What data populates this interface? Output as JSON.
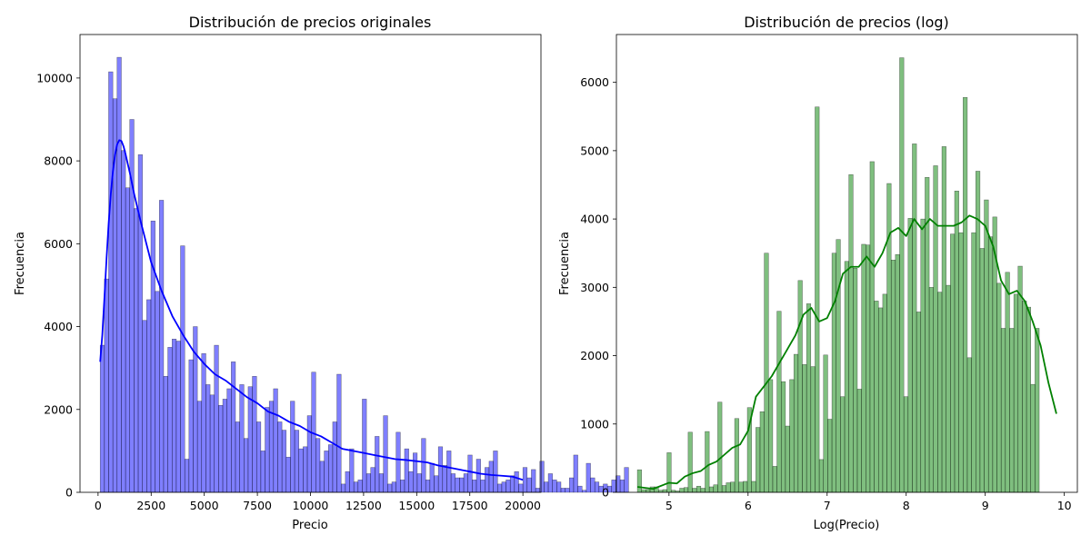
{
  "chart_data": [
    {
      "type": "bar",
      "title": "Distribución de precios originales",
      "xlabel": "Precio",
      "ylabel": "Frecuencia",
      "xlim": [
        -850,
        20850
      ],
      "ylim": [
        0,
        11050
      ],
      "xticks": [
        0,
        2500,
        5000,
        7500,
        10000,
        12500,
        15000,
        17500,
        20000
      ],
      "xtick_labels": [
        "0",
        "2500",
        "5000",
        "7500",
        "10000",
        "12500",
        "15000",
        "17500",
        "20000"
      ],
      "yticks": [
        0,
        2000,
        4000,
        6000,
        8000,
        10000
      ],
      "ytick_labels": [
        "0",
        "2000",
        "4000",
        "6000",
        "8000",
        "10000"
      ],
      "grid": false,
      "bar_color": "#0000ff",
      "bar_alpha": 0.5,
      "kde_color": "#0000ff",
      "bins": {
        "start": 100,
        "width": 199,
        "values": [
          3550,
          5150,
          10150,
          9500,
          10500,
          8250,
          7350,
          9000,
          6850,
          8150,
          4150,
          4650,
          6550,
          4850,
          7050,
          2800,
          3500,
          3700,
          3650,
          5950,
          800,
          3200,
          4000,
          2200,
          3350,
          2600,
          2350,
          3550,
          2100,
          2250,
          2500,
          3150,
          1700,
          2600,
          1300,
          2550,
          2800,
          1700,
          1000,
          2050,
          2200,
          2500,
          1700,
          1500,
          850,
          2200,
          1500,
          1050,
          1100,
          1850,
          2900,
          1300,
          750,
          1000,
          1150,
          1700,
          2850,
          200,
          500,
          1050,
          250,
          300,
          2250,
          450,
          600,
          1350,
          450,
          1850,
          200,
          250,
          1450,
          300,
          1050,
          500,
          950,
          450,
          1300,
          300,
          700,
          400,
          1100,
          650,
          1000,
          450,
          350,
          350,
          450,
          900,
          300,
          800,
          300,
          600,
          750,
          1000,
          200,
          250,
          300,
          400,
          500,
          200,
          600,
          350,
          550,
          100,
          750,
          250,
          450,
          300,
          250,
          100,
          100,
          350,
          900,
          150,
          50,
          700,
          350,
          250,
          150,
          200,
          150,
          300,
          400,
          300,
          600
        ]
      },
      "kde": {
        "x": [
          100,
          200,
          300,
          400,
          500,
          600,
          700,
          800,
          900,
          1000,
          1100,
          1200,
          1300,
          1500,
          1700,
          2000,
          2500,
          3000,
          3500,
          4000,
          4500,
          5000,
          5500,
          6000,
          6500,
          7000,
          7500,
          8000,
          8500,
          9000,
          9500,
          10000,
          10500,
          11000,
          11500,
          12000,
          12500,
          13000,
          13500,
          14000,
          14500,
          15000,
          15500,
          16000,
          16500,
          17000,
          17500,
          18000,
          18500,
          19000,
          19500,
          20000
        ],
        "y": [
          3150,
          3800,
          4700,
          5650,
          6500,
          7200,
          7750,
          8150,
          8400,
          8500,
          8480,
          8350,
          8150,
          7700,
          7200,
          6550,
          5550,
          4850,
          4250,
          3800,
          3400,
          3100,
          2850,
          2700,
          2500,
          2300,
          2150,
          1950,
          1850,
          1700,
          1600,
          1450,
          1350,
          1200,
          1050,
          1000,
          950,
          900,
          850,
          800,
          780,
          750,
          720,
          650,
          600,
          550,
          500,
          450,
          420,
          400,
          380,
          300
        ]
      }
    },
    {
      "type": "bar",
      "title": "Distribución de precios (log)",
      "xlabel": "Log(Precio)",
      "ylabel": "Frecuencia",
      "xlim": [
        4.335,
        10.165
      ],
      "ylim": [
        0,
        6700
      ],
      "xticks": [
        5,
        6,
        7,
        8,
        9,
        10
      ],
      "xtick_labels": [
        "5",
        "6",
        "7",
        "8",
        "9",
        "10"
      ],
      "yticks": [
        0,
        1000,
        2000,
        3000,
        4000,
        5000,
        6000
      ],
      "ytick_labels": [
        "0",
        "1000",
        "2000",
        "3000",
        "4000",
        "5000",
        "6000"
      ],
      "grid": false,
      "bar_color": "#008000",
      "bar_alpha": 0.5,
      "kde_color": "#008000",
      "bins": {
        "start": 4.6,
        "width": 0.0535,
        "values": [
          330,
          40,
          40,
          80,
          80,
          30,
          40,
          580,
          30,
          20,
          60,
          70,
          880,
          60,
          90,
          60,
          890,
          80,
          110,
          1320,
          100,
          140,
          150,
          1080,
          150,
          160,
          1240,
          160,
          950,
          1180,
          3500,
          1650,
          380,
          2650,
          1620,
          970,
          1650,
          2020,
          3100,
          1870,
          2760,
          1840,
          5640,
          480,
          2010,
          1070,
          3500,
          3700,
          1400,
          3380,
          4650,
          3280,
          1510,
          3630,
          3620,
          4840,
          2800,
          2700,
          2900,
          4520,
          3400,
          3480,
          6360,
          1400,
          4010,
          5100,
          2640,
          4000,
          4610,
          3000,
          4780,
          2930,
          5060,
          3030,
          3780,
          4410,
          3800,
          5780,
          1970,
          3800,
          4700,
          3570,
          4280,
          3740,
          4030,
          3060,
          2400,
          3220,
          2400,
          2900,
          3310,
          2800,
          2710,
          1580,
          2400
        ]
      },
      "kde": {
        "x": [
          4.6,
          4.8,
          5.0,
          5.1,
          5.2,
          5.3,
          5.4,
          5.5,
          5.6,
          5.7,
          5.8,
          5.9,
          6.0,
          6.1,
          6.2,
          6.3,
          6.4,
          6.5,
          6.6,
          6.7,
          6.8,
          6.9,
          7.0,
          7.1,
          7.2,
          7.3,
          7.4,
          7.5,
          7.6,
          7.7,
          7.8,
          7.9,
          8.0,
          8.1,
          8.2,
          8.3,
          8.4,
          8.5,
          8.6,
          8.7,
          8.8,
          8.9,
          9.0,
          9.1,
          9.2,
          9.3,
          9.4,
          9.5,
          9.6,
          9.7,
          9.8,
          9.9
        ],
        "y": [
          80,
          50,
          140,
          130,
          230,
          280,
          310,
          400,
          450,
          550,
          650,
          700,
          900,
          1400,
          1550,
          1700,
          1900,
          2100,
          2300,
          2600,
          2700,
          2500,
          2550,
          2800,
          3200,
          3300,
          3300,
          3450,
          3300,
          3500,
          3800,
          3870,
          3750,
          4000,
          3850,
          4000,
          3900,
          3900,
          3900,
          3950,
          4050,
          4000,
          3900,
          3600,
          3100,
          2900,
          2950,
          2800,
          2500,
          2150,
          1600,
          1150
        ]
      }
    }
  ]
}
